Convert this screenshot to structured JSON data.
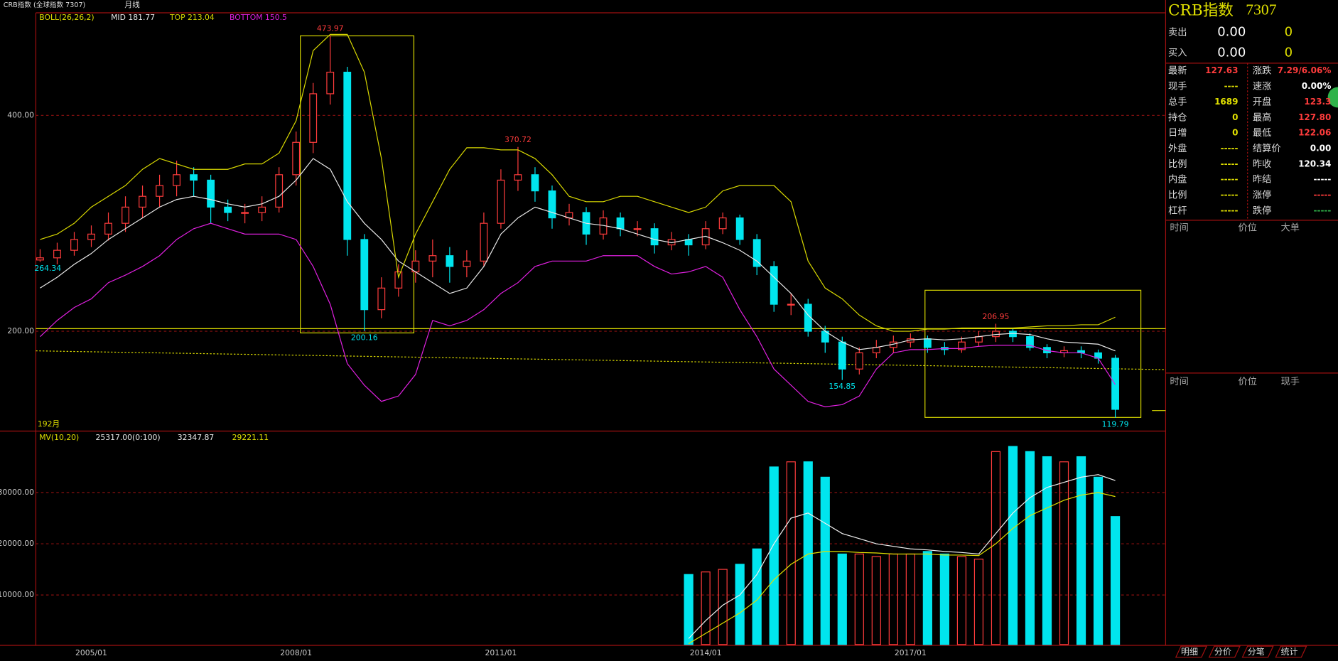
{
  "chart_data": {
    "type": "candlestick",
    "window_title": "CRB指数 (全球指数 7307)",
    "period": "月线",
    "bar_count": "192月",
    "indicator": "BOLL(26,26,2)",
    "categories": [
      null,
      null,
      null,
      "2005/01",
      null,
      null,
      null,
      null,
      null,
      null,
      null,
      null,
      null,
      null,
      null,
      "2008/01",
      null,
      null,
      null,
      null,
      null,
      null,
      null,
      null,
      null,
      null,
      null,
      "2011/01",
      null,
      null,
      null,
      null,
      null,
      null,
      null,
      null,
      null,
      null,
      null,
      "2014/01",
      null,
      null,
      null,
      null,
      null,
      null,
      null,
      null,
      null,
      null,
      null,
      "2017/01",
      null,
      null,
      null,
      null,
      null,
      null,
      null,
      null,
      null,
      null,
      null,
      null
    ],
    "ohlc": [
      [
        266,
        276,
        264.34,
        268
      ],
      [
        268,
        282,
        262,
        275
      ],
      [
        275,
        292,
        270,
        285
      ],
      [
        285,
        298,
        278,
        290
      ],
      [
        290,
        310,
        284,
        300
      ],
      [
        300,
        325,
        292,
        315
      ],
      [
        315,
        335,
        305,
        325
      ],
      [
        325,
        345,
        315,
        335
      ],
      [
        335,
        358,
        325,
        345
      ],
      [
        345,
        352,
        325,
        340
      ],
      [
        340,
        345,
        300,
        315
      ],
      [
        315,
        322,
        302,
        310
      ],
      [
        310,
        318,
        300,
        310
      ],
      [
        310,
        325,
        302,
        315
      ],
      [
        315,
        352,
        310,
        345
      ],
      [
        345,
        385,
        335,
        375
      ],
      [
        375,
        430,
        365,
        420
      ],
      [
        420,
        473.97,
        410,
        440
      ],
      [
        440,
        445,
        270,
        285
      ],
      [
        285,
        290,
        200.16,
        220
      ],
      [
        220,
        250,
        212,
        240
      ],
      [
        240,
        262,
        232,
        255
      ],
      [
        255,
        275,
        245,
        265
      ],
      [
        265,
        285,
        250,
        270
      ],
      [
        270,
        278,
        245,
        260
      ],
      [
        260,
        275,
        250,
        265
      ],
      [
        265,
        310,
        260,
        300
      ],
      [
        300,
        350,
        295,
        340
      ],
      [
        340,
        370.72,
        330,
        345
      ],
      [
        345,
        352,
        320,
        330
      ],
      [
        330,
        335,
        295,
        305
      ],
      [
        305,
        318,
        298,
        310
      ],
      [
        310,
        315,
        280,
        290
      ],
      [
        290,
        312,
        285,
        305
      ],
      [
        305,
        310,
        288,
        295
      ],
      [
        295,
        302,
        288,
        295
      ],
      [
        295,
        300,
        272,
        280
      ],
      [
        280,
        292,
        275,
        285
      ],
      [
        285,
        290,
        270,
        280
      ],
      [
        280,
        302,
        276,
        295
      ],
      [
        295,
        310,
        290,
        305
      ],
      [
        305,
        308,
        280,
        285
      ],
      [
        285,
        290,
        252,
        260
      ],
      [
        260,
        265,
        218,
        225
      ],
      [
        225,
        235,
        215,
        225
      ],
      [
        225,
        230,
        195,
        200
      ],
      [
        200,
        205,
        180,
        190
      ],
      [
        190,
        195,
        154.85,
        165
      ],
      [
        165,
        185,
        160,
        180
      ],
      [
        180,
        192,
        175,
        185
      ],
      [
        185,
        196,
        180,
        190
      ],
      [
        190,
        198,
        185,
        193
      ],
      [
        193,
        196,
        180,
        185
      ],
      [
        185,
        190,
        178,
        183
      ],
      [
        183,
        195,
        180,
        190
      ],
      [
        190,
        200,
        186,
        195
      ],
      [
        195,
        206.95,
        190,
        200
      ],
      [
        200,
        202,
        190,
        195
      ],
      [
        195,
        198,
        182,
        185
      ],
      [
        185,
        188,
        175,
        180
      ],
      [
        180,
        186,
        176,
        182
      ],
      [
        182,
        186,
        175,
        180
      ],
      [
        180,
        183,
        170,
        175
      ],
      [
        175,
        178,
        119.79,
        127.63
      ]
    ],
    "up_color": "#ff3c3c",
    "down_color": "#00e5ee",
    "series": [
      {
        "name": "MID",
        "color": "#e8e8e8",
        "values": [
          240,
          250,
          262,
          272,
          285,
          295,
          305,
          315,
          322,
          325,
          322,
          318,
          315,
          318,
          325,
          340,
          360,
          350,
          320,
          300,
          285,
          265,
          255,
          245,
          235,
          240,
          260,
          290,
          305,
          315,
          310,
          305,
          300,
          298,
          295,
          290,
          285,
          282,
          285,
          288,
          282,
          275,
          265,
          250,
          235,
          215,
          200,
          190,
          183,
          185,
          188,
          192,
          193,
          192,
          193,
          195,
          197,
          198,
          197,
          193,
          190,
          189,
          188,
          181.77
        ]
      },
      {
        "name": "TOP",
        "color": "#d8d800",
        "values": [
          285,
          290,
          300,
          315,
          325,
          335,
          350,
          360,
          355,
          350,
          350,
          350,
          355,
          355,
          365,
          395,
          460,
          475,
          475,
          440,
          360,
          250,
          290,
          320,
          350,
          370,
          370,
          368,
          368,
          360,
          345,
          325,
          320,
          320,
          325,
          325,
          320,
          315,
          310,
          315,
          330,
          335,
          335,
          335,
          320,
          265,
          240,
          230,
          215,
          205,
          200,
          200,
          202,
          202,
          203,
          203,
          203,
          203,
          204,
          205,
          205,
          206,
          206,
          213.04
        ]
      },
      {
        "name": "BOTTOM",
        "color": "#e020e0",
        "values": [
          195,
          210,
          222,
          230,
          245,
          252,
          260,
          270,
          285,
          295,
          300,
          295,
          290,
          290,
          290,
          285,
          260,
          225,
          170,
          150,
          135,
          140,
          160,
          210,
          205,
          210,
          220,
          235,
          245,
          260,
          265,
          265,
          265,
          270,
          270,
          270,
          260,
          253,
          255,
          260,
          250,
          220,
          195,
          165,
          150,
          135,
          130,
          132,
          140,
          165,
          180,
          183,
          183,
          184,
          184,
          186,
          187,
          187,
          187,
          182,
          180,
          180,
          175,
          150.5
        ]
      }
    ],
    "ylim": [
      107.5,
      495
    ],
    "yticks": [
      {
        "value": 200,
        "label": "200.00"
      },
      {
        "value": 400,
        "label": "400.00"
      }
    ],
    "grid": true,
    "volume": {
      "indicator": "MV(10,20)",
      "volume_label": "25317.00(0:100)",
      "values": [
        null,
        null,
        null,
        null,
        null,
        null,
        null,
        null,
        null,
        null,
        null,
        null,
        null,
        null,
        null,
        null,
        null,
        null,
        null,
        null,
        null,
        null,
        null,
        null,
        null,
        null,
        null,
        null,
        null,
        null,
        null,
        null,
        null,
        null,
        null,
        null,
        null,
        null,
        14000,
        14500,
        15000,
        16000,
        19000,
        35000,
        36000,
        36000,
        33000,
        18000,
        18000,
        17500,
        18000,
        18000,
        18500,
        18000,
        17500,
        17000,
        38000,
        39000,
        38000,
        37000,
        36000,
        37000,
        33000,
        25317
      ],
      "ma": [
        {
          "color": "#f0f0f0",
          "values": [
            null,
            null,
            null,
            null,
            null,
            null,
            null,
            null,
            null,
            null,
            null,
            null,
            null,
            null,
            null,
            null,
            null,
            null,
            null,
            null,
            null,
            null,
            null,
            null,
            null,
            null,
            null,
            null,
            null,
            null,
            null,
            null,
            null,
            null,
            null,
            null,
            null,
            null,
            1500,
            5000,
            8000,
            10000,
            14000,
            20000,
            25000,
            26000,
            24000,
            22000,
            21000,
            20000,
            19500,
            19000,
            18800,
            18500,
            18300,
            18000,
            22000,
            26000,
            29000,
            31000,
            32000,
            33000,
            33500,
            32347.87
          ]
        },
        {
          "color": "#e0e000",
          "values": [
            null,
            null,
            null,
            null,
            null,
            null,
            null,
            null,
            null,
            null,
            null,
            null,
            null,
            null,
            null,
            null,
            null,
            null,
            null,
            null,
            null,
            null,
            null,
            null,
            null,
            null,
            null,
            null,
            null,
            null,
            null,
            null,
            null,
            null,
            null,
            null,
            null,
            null,
            500,
            2500,
            4500,
            6500,
            9000,
            13000,
            16000,
            18000,
            18500,
            18500,
            18300,
            18200,
            18000,
            18000,
            18000,
            17800,
            17800,
            17700,
            20000,
            23000,
            25500,
            27000,
            28500,
            29500,
            30000,
            29221.11
          ]
        }
      ],
      "ylim": [
        333,
        41667
      ],
      "yticks": [
        {
          "value": 10000,
          "label": "10000.00"
        },
        {
          "value": 20000,
          "label": "20000.00"
        },
        {
          "value": 30000,
          "label": "30000.00"
        }
      ]
    }
  },
  "quote_panel": {
    "title": "CRB指数",
    "code": "7307",
    "orders": [
      [
        "卖出",
        "0.00",
        "0"
      ],
      [
        "买入",
        "0.00",
        "0"
      ]
    ],
    "rows": [
      [
        "最新",
        "127.63",
        "涨跌",
        "7.29/6.06%"
      ],
      [
        "现手",
        "----",
        "速涨",
        "0.00%"
      ],
      [
        "总手",
        "1689",
        "开盘",
        "123.3"
      ],
      [
        "持仓",
        "0",
        "最高",
        "127.80"
      ],
      [
        "日增",
        "0",
        "最低",
        "122.06"
      ],
      [
        "外盘",
        "-----",
        "结算价",
        "0.00"
      ],
      [
        "比例",
        "-----",
        "昨收",
        "120.34"
      ],
      [
        "内盘",
        "-----",
        "昨结",
        "-----"
      ],
      [
        "比例",
        "-----",
        "涨停",
        "-----"
      ],
      [
        "杠杆",
        "-----",
        "跌停",
        "-----"
      ]
    ],
    "trade_header": [
      "时间",
      "价位",
      "大单"
    ],
    "tick_header": [
      "时间",
      "价位",
      "现手"
    ],
    "tabs": [
      "明细",
      "分价",
      "分笔",
      "统计"
    ]
  }
}
